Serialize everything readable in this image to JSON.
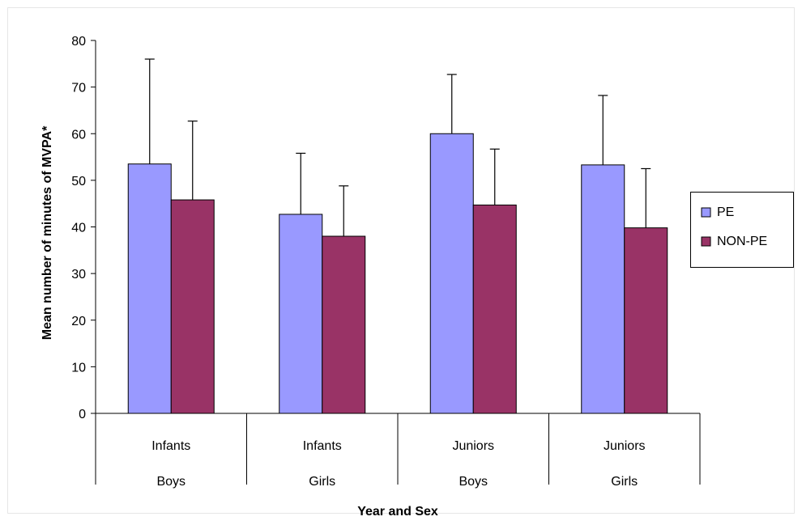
{
  "chart_data": {
    "type": "bar",
    "categories": [
      {
        "year": "Infants",
        "sex": "Boys"
      },
      {
        "year": "Infants",
        "sex": "Girls"
      },
      {
        "year": "Juniors",
        "sex": "Boys"
      },
      {
        "year": "Juniors",
        "sex": "Girls"
      }
    ],
    "series": [
      {
        "name": "PE",
        "color": "#9999ff",
        "values": [
          53.5,
          42.7,
          60.0,
          53.3
        ],
        "error_upper": [
          76.0,
          55.8,
          72.7,
          68.2
        ]
      },
      {
        "name": "NON-PE",
        "color": "#993366",
        "values": [
          45.8,
          38.0,
          44.7,
          39.8
        ],
        "error_upper": [
          62.7,
          48.8,
          56.7,
          52.5
        ]
      }
    ],
    "xlabel": "Year and Sex",
    "ylabel": "Mean number of minutes of MVPA*",
    "ylim": [
      0,
      80
    ],
    "yticks": [
      "0",
      "10",
      "20",
      "30",
      "40",
      "50",
      "60",
      "70",
      "80"
    ],
    "grid": false,
    "legend_position": "right"
  }
}
